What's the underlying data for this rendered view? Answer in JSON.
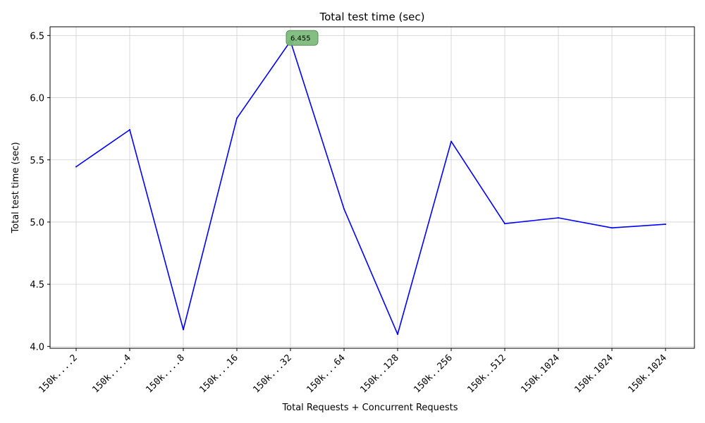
{
  "chart_data": {
    "type": "line",
    "title": "Total test time (sec)",
    "xlabel": "Total Requests + Concurrent Requests",
    "ylabel": "Total test time (sec)",
    "categories": [
      "150k....2",
      "150k....4",
      "150k....8",
      "150k...16",
      "150k...32",
      "150k...64",
      "150k..128",
      "150k..256",
      "150k..512",
      "150k.1024",
      "150k.1024",
      "150k.1024"
    ],
    "series": [
      {
        "values": [
          5.445,
          5.742,
          4.135,
          5.835,
          6.455,
          5.105,
          4.098,
          5.648,
          4.987,
          5.034,
          4.953,
          4.982
        ],
        "color": "#0000ff"
      }
    ],
    "ylim": [
      3.985,
      6.57
    ],
    "yticks": [
      "4.0",
      "4.5",
      "5.0",
      "5.5",
      "6.0",
      "6.5"
    ],
    "ytick_values": [
      4.0,
      4.5,
      5.0,
      5.5,
      6.0,
      6.5
    ],
    "grid": true,
    "annotation": {
      "text": "6.455",
      "category_index": 4,
      "value": 6.455,
      "marker": "triangle-up",
      "marker_color": "#008000",
      "box_color": "#7cbc7c"
    }
  }
}
